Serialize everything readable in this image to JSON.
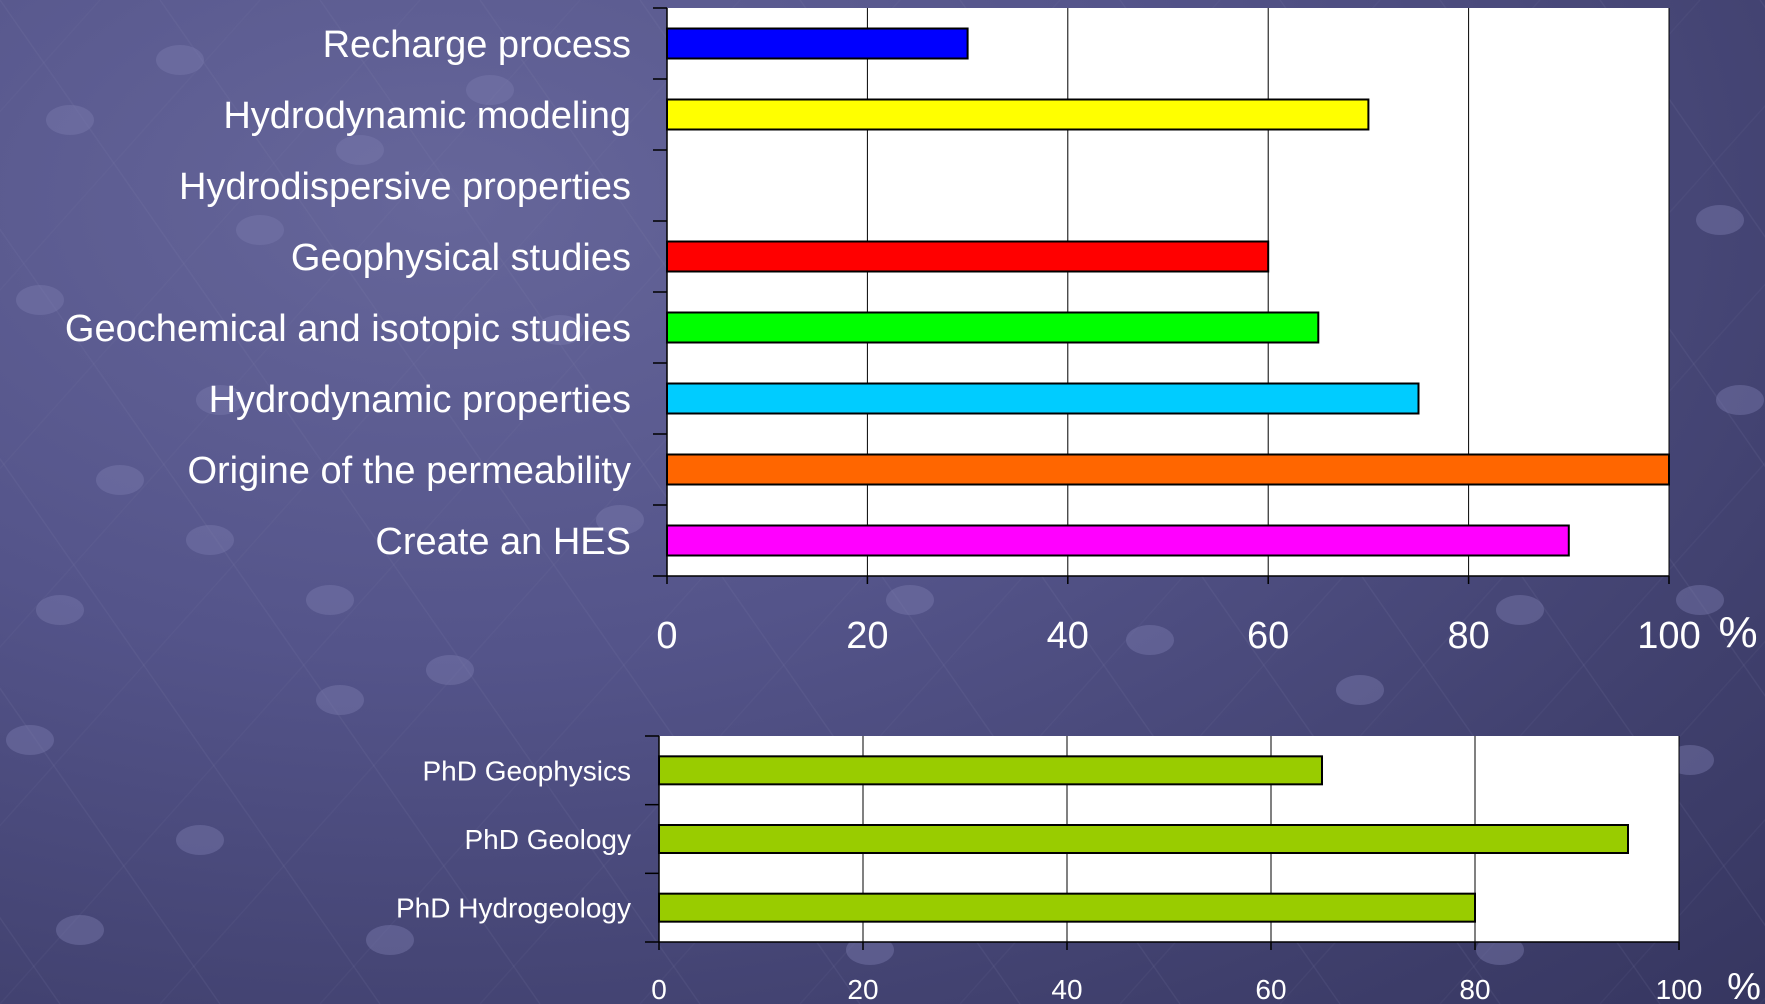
{
  "chart_data": [
    {
      "type": "bar",
      "orientation": "horizontal",
      "categories": [
        "Recharge process",
        "Hydrodynamic modeling",
        "Hydrodispersive properties",
        "Geophysical studies",
        "Geochemical and isotopic studies",
        "Hydrodynamic properties",
        "Origine of the permeability",
        "Create an HES"
      ],
      "values": [
        30,
        70,
        0,
        60,
        65,
        75,
        100,
        90
      ],
      "colors": [
        "#0000ff",
        "#ffff00",
        "#ffffff",
        "#ff0000",
        "#00ff00",
        "#00ccff",
        "#ff6600",
        "#ff00ff"
      ],
      "xlim": [
        0,
        100
      ],
      "xticks": [
        "0",
        "20",
        "40",
        "60",
        "80",
        "100"
      ],
      "unit": "%",
      "grid": true,
      "plot_background": "#ffffff"
    },
    {
      "type": "bar",
      "orientation": "horizontal",
      "categories": [
        "PhD Geophysics",
        "PhD Geology",
        "PhD Hydrogeology"
      ],
      "values": [
        65,
        95,
        80
      ],
      "colors": [
        "#99cc00",
        "#99cc00",
        "#99cc00"
      ],
      "xlim": [
        0,
        100
      ],
      "xticks": [
        "0",
        "20",
        "40",
        "60",
        "80",
        "100"
      ],
      "unit": "%",
      "grid": true,
      "plot_background": "#ffffff"
    }
  ]
}
